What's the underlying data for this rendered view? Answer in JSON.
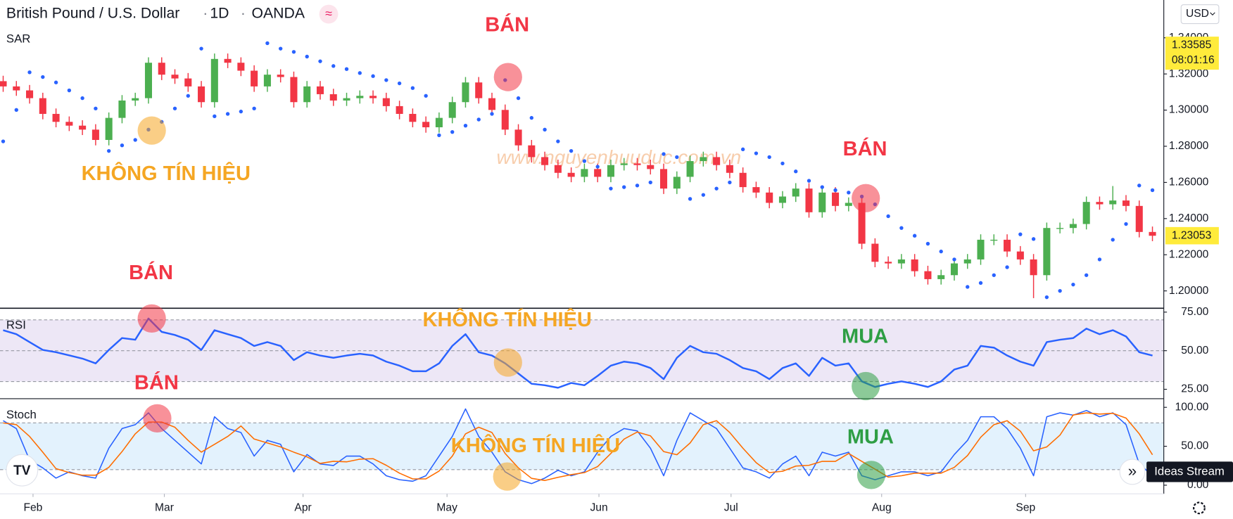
{
  "chart_data": [
    {
      "type": "candlestick",
      "title": "British Pound / U.S. Dollar",
      "interval": "1D",
      "source": "OANDA",
      "currency": "USD",
      "watermark": "www.nguyenhuuduc.com.vn",
      "up_color": "#4caf50",
      "down_color": "#f23645",
      "xlim": [
        -0.24,
        87.86
      ],
      "xticks": [
        {
          "value": 2.26,
          "label": "Feb"
        },
        {
          "value": 12.2,
          "label": "Mar"
        },
        {
          "value": 22.7,
          "label": "Apr"
        },
        {
          "value": 33.6,
          "label": "May"
        },
        {
          "value": 45.1,
          "label": "Jun"
        },
        {
          "value": 55.1,
          "label": "Jul"
        },
        {
          "value": 66.5,
          "label": "Aug"
        },
        {
          "value": 77.4,
          "label": "Sep"
        }
      ],
      "ylim": [
        1.1904,
        1.3609
      ],
      "yticks": [
        {
          "value": 1.2,
          "label": "1.20000"
        },
        {
          "value": 1.22,
          "label": "1.22000"
        },
        {
          "value": 1.24,
          "label": "1.24000"
        },
        {
          "value": 1.26,
          "label": "1.26000"
        },
        {
          "value": 1.28,
          "label": "1.28000"
        },
        {
          "value": 1.3,
          "label": "1.30000"
        },
        {
          "value": 1.32,
          "label": "1.32000"
        },
        {
          "value": 1.34,
          "label": "1.34000"
        }
      ],
      "open": [
        1.316,
        1.3131,
        1.3109,
        1.3066,
        1.2979,
        1.2935,
        1.2914,
        1.2892,
        1.2835,
        1.2957,
        1.3053,
        1.3066,
        1.3262,
        1.3196,
        1.3175,
        1.3131,
        1.3044,
        1.3283,
        1.3262,
        1.3218,
        1.3131,
        1.3196,
        1.3183,
        1.3044,
        1.3131,
        1.3088,
        1.3053,
        1.3066,
        1.3079,
        1.3066,
        1.3022,
        1.2979,
        1.2935,
        1.2905,
        1.2957,
        1.3044,
        1.3153,
        1.3066,
        1.3001,
        1.2892,
        1.2805,
        1.274,
        1.2696,
        1.2653,
        1.2631,
        1.2674,
        1.2631,
        1.2696,
        1.2705,
        1.2696,
        1.2674,
        1.2566,
        1.2631,
        1.2718,
        1.274,
        1.2696,
        1.2653,
        1.2574,
        1.2544,
        1.2487,
        1.2522,
        1.2566,
        1.2435,
        1.2544,
        1.247,
        1.2487,
        1.2261,
        1.2161,
        1.2152,
        1.2174,
        1.2109,
        1.2065,
        1.2087,
        1.2152,
        1.2174,
        1.2283,
        1.2283,
        1.2218,
        1.2174,
        1.2087,
        1.2348,
        1.2348,
        1.237,
        1.2492,
        1.2479,
        1.25,
        1.247,
        1.2326
      ],
      "high": [
        1.319,
        1.3161,
        1.3139,
        1.3096,
        1.3009,
        1.2965,
        1.2944,
        1.2922,
        1.2987,
        1.3083,
        1.3096,
        1.3292,
        1.3292,
        1.3226,
        1.3205,
        1.3161,
        1.3313,
        1.3313,
        1.3292,
        1.3248,
        1.3226,
        1.3226,
        1.3213,
        1.3161,
        1.3161,
        1.3118,
        1.3096,
        1.3109,
        1.3109,
        1.3096,
        1.3052,
        1.3009,
        1.2965,
        1.2987,
        1.3074,
        1.3183,
        1.3183,
        1.3096,
        1.3031,
        1.2922,
        1.2835,
        1.277,
        1.2726,
        1.2683,
        1.2704,
        1.2704,
        1.2726,
        1.2735,
        1.2735,
        1.2726,
        1.2704,
        1.2661,
        1.2748,
        1.277,
        1.277,
        1.2726,
        1.2683,
        1.2604,
        1.2574,
        1.2552,
        1.2596,
        1.2596,
        1.2574,
        1.2574,
        1.2517,
        1.2517,
        1.2291,
        1.2191,
        1.2204,
        1.2204,
        1.2139,
        1.2117,
        1.2182,
        1.2204,
        1.2313,
        1.2313,
        1.2313,
        1.2248,
        1.2204,
        1.2378,
        1.2378,
        1.24,
        1.2522,
        1.2522,
        1.258,
        1.253,
        1.25,
        1.2356
      ],
      "low": [
        1.3101,
        1.3079,
        1.3036,
        1.2949,
        1.2905,
        1.2884,
        1.2862,
        1.2805,
        1.2805,
        1.2927,
        1.3023,
        1.3036,
        1.3166,
        1.3145,
        1.3101,
        1.3014,
        1.3014,
        1.3232,
        1.3188,
        1.3101,
        1.3101,
        1.3153,
        1.3014,
        1.3014,
        1.3058,
        1.3023,
        1.3023,
        1.3036,
        1.3036,
        1.2992,
        1.2949,
        1.2905,
        1.2875,
        1.2875,
        1.2927,
        1.3014,
        1.3036,
        1.2971,
        1.2862,
        1.2775,
        1.271,
        1.2666,
        1.2623,
        1.2601,
        1.2601,
        1.2601,
        1.2601,
        1.2666,
        1.2666,
        1.2644,
        1.2536,
        1.2536,
        1.2601,
        1.2688,
        1.2666,
        1.2623,
        1.2544,
        1.2514,
        1.2457,
        1.2457,
        1.2492,
        1.2405,
        1.2405,
        1.244,
        1.244,
        1.2231,
        1.2131,
        1.2122,
        1.2122,
        1.2079,
        1.2035,
        1.2035,
        1.2057,
        1.2122,
        1.2144,
        1.2253,
        1.2188,
        1.2144,
        1.196,
        1.2057,
        1.2318,
        1.2318,
        1.234,
        1.2449,
        1.2449,
        1.244,
        1.2296,
        1.2275
      ],
      "close": [
        1.3131,
        1.3109,
        1.3066,
        1.2979,
        1.2935,
        1.2914,
        1.2892,
        1.2835,
        1.2957,
        1.3053,
        1.3066,
        1.3262,
        1.3196,
        1.3175,
        1.3131,
        1.3044,
        1.3283,
        1.3262,
        1.3218,
        1.3131,
        1.3196,
        1.3183,
        1.3044,
        1.3131,
        1.3088,
        1.3053,
        1.3066,
        1.3079,
        1.3066,
        1.3022,
        1.2979,
        1.2935,
        1.2905,
        1.2957,
        1.3044,
        1.3153,
        1.3066,
        1.3001,
        1.2892,
        1.2805,
        1.274,
        1.2696,
        1.2653,
        1.2631,
        1.2674,
        1.2631,
        1.2696,
        1.2705,
        1.2696,
        1.2674,
        1.2566,
        1.2631,
        1.2718,
        1.274,
        1.2696,
        1.2653,
        1.2574,
        1.2544,
        1.2487,
        1.2522,
        1.2566,
        1.2435,
        1.2544,
        1.247,
        1.2487,
        1.2261,
        1.2161,
        1.2152,
        1.2174,
        1.2109,
        1.2065,
        1.2087,
        1.2152,
        1.2174,
        1.2283,
        1.2283,
        1.2218,
        1.2174,
        1.2087,
        1.2348,
        1.2348,
        1.237,
        1.2492,
        1.2479,
        1.25,
        1.247,
        1.2326,
        1.2305
      ],
      "sar": {
        "name": "SAR",
        "color": "#2962ff",
        "values": [
          1.2827,
          1.3001,
          1.3209,
          1.3183,
          1.3153,
          1.3109,
          1.3066,
          1.3009,
          1.2774,
          1.2805,
          1.2835,
          1.2892,
          1.2935,
          1.3009,
          1.3079,
          1.334,
          1.2966,
          1.2979,
          1.2992,
          1.3009,
          1.337,
          1.334,
          1.3322,
          1.3296,
          1.327,
          1.3244,
          1.3227,
          1.3205,
          1.3188,
          1.3166,
          1.3148,
          1.3122,
          1.3079,
          1.2861,
          1.2879,
          1.2914,
          1.2948,
          1.2979,
          1.3166,
          1.3066,
          1.2957,
          1.2892,
          1.2827,
          1.2774,
          1.2718,
          1.2687,
          1.2566,
          1.2574,
          1.2583,
          1.26,
          1.2757,
          1.274,
          1.2509,
          1.2531,
          1.2566,
          1.26,
          1.2783,
          1.2761,
          1.274,
          1.2705,
          1.2661,
          1.2609,
          1.2574,
          1.2557,
          1.2544,
          1.2522,
          1.2479,
          1.2413,
          1.2348,
          1.2305,
          1.2261,
          1.2218,
          1.2174,
          1.2022,
          1.2044,
          1.2087,
          1.2131,
          1.2313,
          1.2287,
          1.1965,
          1.2,
          1.2035,
          1.2087,
          1.2174,
          1.2283,
          1.237,
          1.2583,
          1.2557
        ]
      },
      "price_labels": [
        {
          "value": 1.33585,
          "time": "08:01:16"
        },
        {
          "value": 1.23053
        }
      ],
      "price_label_color": "#ffeb3b"
    },
    {
      "type": "line",
      "title": "RSI",
      "xlim": [
        -0.24,
        87.86
      ],
      "ylim": [
        18.9,
        77.0
      ],
      "yticks": [
        {
          "value": 25,
          "label": "25.00"
        },
        {
          "value": 50,
          "label": "50.00"
        },
        {
          "value": 75,
          "label": "75.00"
        }
      ],
      "band": [
        30,
        70
      ],
      "levels": [
        70,
        50,
        30
      ],
      "band_color": "#ede7f6",
      "series": [
        {
          "color": "#2962ff",
          "values": [
            63.3,
            60.7,
            55.6,
            50.5,
            49,
            47,
            44.9,
            41.8,
            50.5,
            58.2,
            57.1,
            70.9,
            62.2,
            60.2,
            57.1,
            50.5,
            63.3,
            60.7,
            58.2,
            53.1,
            55.6,
            53.1,
            43.9,
            49,
            46.9,
            45.4,
            46.9,
            48,
            46.9,
            42.9,
            40.3,
            36.7,
            36.7,
            41.8,
            53.1,
            60.7,
            49,
            46.9,
            41.8,
            35.2,
            28.6,
            27.6,
            26,
            29.1,
            27.6,
            33.7,
            40.3,
            42.9,
            41.8,
            38.8,
            31.6,
            45.4,
            53.1,
            49,
            48,
            43.9,
            38.8,
            36.7,
            31.6,
            38.8,
            41.8,
            33.7,
            45.4,
            40.3,
            41.8,
            30.1,
            26.5,
            28.6,
            30.1,
            28.6,
            26.5,
            30.1,
            37.8,
            40.3,
            53.1,
            52,
            46.9,
            42.9,
            40.3,
            55.6,
            57.1,
            58.2,
            64.3,
            60.7,
            63.3,
            59.2,
            49,
            46.9
          ]
        }
      ]
    },
    {
      "type": "line",
      "title": "Stoch",
      "xlim": [
        -0.24,
        87.86
      ],
      "ylim": [
        -11.1,
        111.1
      ],
      "yticks": [
        {
          "value": 0,
          "label": "0.00"
        },
        {
          "value": 50,
          "label": "50.00"
        },
        {
          "value": 100,
          "label": "100.00"
        }
      ],
      "band": [
        20,
        80
      ],
      "levels": [
        80,
        20
      ],
      "band_color": "#e3f2fd",
      "series": [
        {
          "color": "#2962ff",
          "values": [
            82.8,
            72.7,
            32.3,
            22.2,
            9.1,
            17.2,
            12.1,
            9.1,
            47.5,
            72.7,
            77.8,
            92.9,
            72.7,
            57.6,
            42.4,
            27.3,
            87.9,
            72.7,
            67.7,
            37.4,
            57.6,
            52.5,
            17.2,
            39.4,
            27.3,
            25.3,
            37.4,
            37.4,
            27.3,
            12.1,
            7.1,
            5.1,
            12.1,
            37.4,
            62.6,
            98,
            62.6,
            42.4,
            17.2,
            7.1,
            2,
            9.1,
            19.2,
            12.1,
            17.2,
            42.4,
            62.6,
            72.7,
            69.7,
            47.5,
            12.1,
            57.6,
            92.9,
            82.8,
            72.7,
            47.5,
            22.2,
            17.2,
            9.1,
            27.3,
            37.4,
            12.1,
            42.4,
            37.4,
            42.4,
            12.1,
            7.1,
            12.1,
            17.2,
            17.2,
            12.1,
            17.2,
            39.4,
            57.6,
            87.9,
            87.9,
            72.7,
            47.5,
            12.1,
            87.9,
            92.9,
            89.9,
            96,
            87.9,
            92.9,
            77.8,
            27.3,
            12.1
          ]
        },
        {
          "color": "#ff6d00",
          "values": [
            80,
            77.8,
            62.6,
            42.4,
            21.2,
            16.2,
            12.8,
            12.8,
            22.9,
            43.1,
            66,
            81.1,
            81.1,
            74.4,
            57.6,
            42.4,
            52.5,
            62.6,
            76.1,
            59.3,
            54.2,
            49.2,
            42.4,
            36.4,
            28,
            30.7,
            30,
            33.4,
            34,
            25.6,
            15.5,
            8.1,
            8.1,
            18.2,
            37.4,
            66,
            74.4,
            67.7,
            40.7,
            22.2,
            8.8,
            6.1,
            10.1,
            13.5,
            16.2,
            23.9,
            40.7,
            59.2,
            68.3,
            63.3,
            43.1,
            39.1,
            54.2,
            77.8,
            82.8,
            67.7,
            47.5,
            29,
            16.2,
            17.9,
            24.6,
            25.6,
            30.6,
            30.6,
            40.7,
            30.6,
            20.5,
            10.4,
            12.1,
            15.5,
            15.5,
            15.5,
            22.9,
            38.1,
            61.6,
            77.8,
            82.8,
            69.4,
            44.1,
            49.2,
            64.3,
            90.2,
            92.9,
            91.3,
            92.3,
            86.2,
            66,
            39.1
          ]
        }
      ]
    }
  ],
  "annotations": [
    {
      "text": "BÁN"
    },
    {
      "text": "KHÔNG TÍN HIỆU"
    },
    {
      "text": "BÁN"
    },
    {
      "text": "BÁN"
    },
    {
      "text": "KHÔNG TÍN HIỆU"
    },
    {
      "text": "MUA"
    },
    {
      "text": "BÁN"
    },
    {
      "text": "KHÔNG TÍN HIỆU"
    },
    {
      "text": "MUA"
    }
  ],
  "ideas_stream": "Ideas Stream"
}
